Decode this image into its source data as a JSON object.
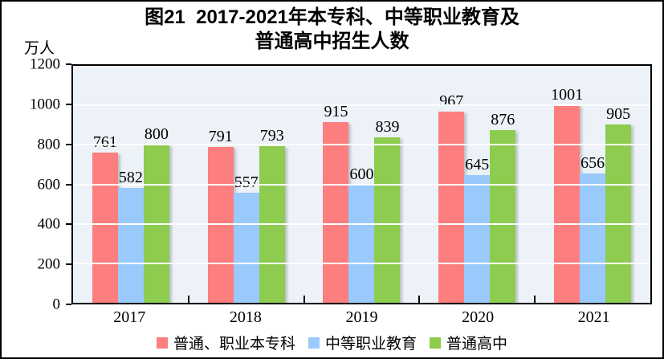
{
  "figure": {
    "title_line1": "图21  2017-2021年本专科、中等职业教育及",
    "title_line2": "普通高中招生人数",
    "y_unit": "万人"
  },
  "chart_data": {
    "type": "bar",
    "title": "图21 2017-2021年本专科、中等职业教育及普通高中招生人数",
    "xlabel": "",
    "ylabel": "万人",
    "ylim": [
      0,
      1200
    ],
    "y_ticks": [
      0,
      200,
      400,
      600,
      800,
      1000,
      1200
    ],
    "grid": true,
    "legend_position": "bottom",
    "categories": [
      "2017",
      "2018",
      "2019",
      "2020",
      "2021"
    ],
    "series": [
      {
        "name": "普通、职业本专科",
        "color": "#FC7E7E",
        "values": [
          761,
          791,
          915,
          967,
          1001
        ]
      },
      {
        "name": "中等职业教育",
        "color": "#9AC9FC",
        "values": [
          582,
          557,
          600,
          645,
          656
        ]
      },
      {
        "name": "普通高中",
        "color": "#8DCC4E",
        "values": [
          800,
          793,
          839,
          876,
          905
        ]
      }
    ],
    "colors": {
      "plot_background": "#ECF2F8",
      "gridline": "#FFFFFF",
      "axis": "#000000",
      "label_text": "#000000"
    }
  }
}
